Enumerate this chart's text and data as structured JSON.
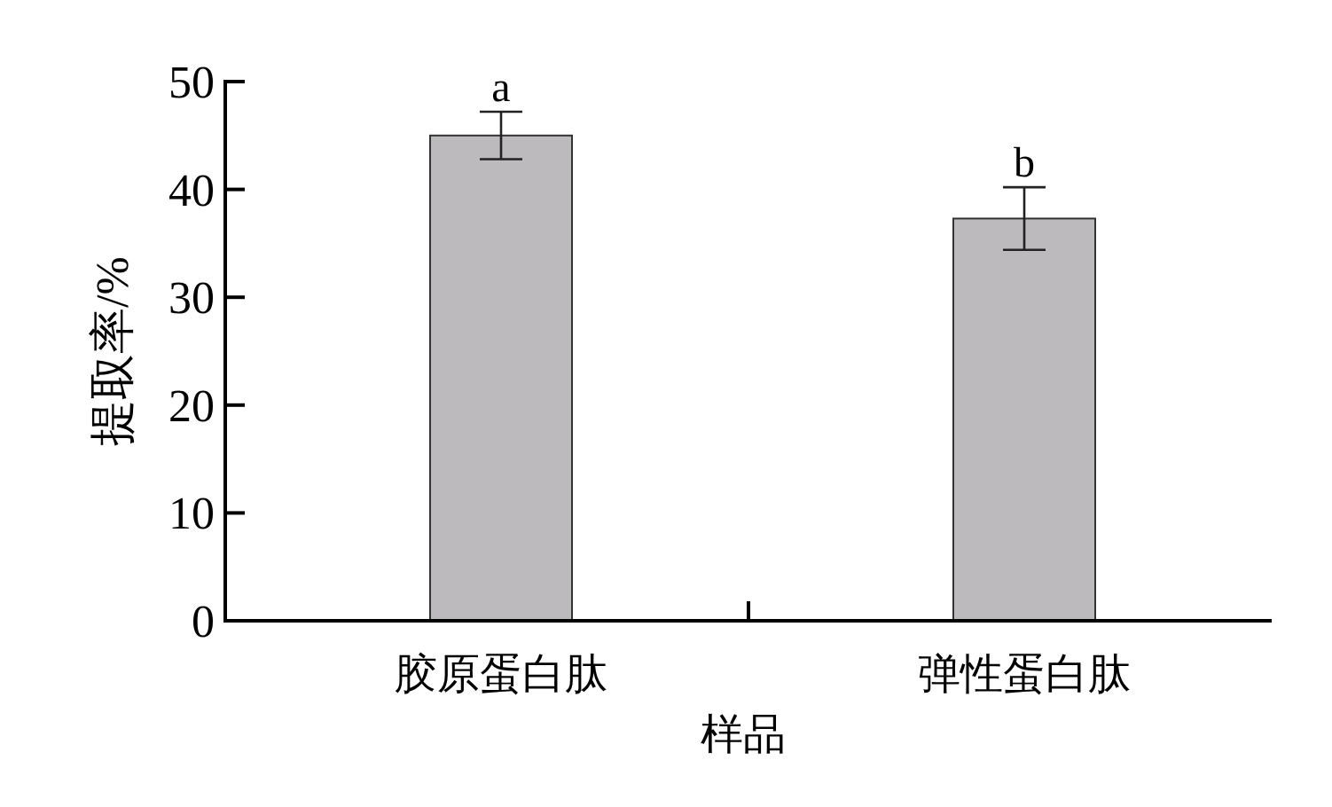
{
  "chart_data": {
    "type": "bar",
    "xlabel": "样品",
    "ylabel": "提取率/%",
    "categories": [
      "胶原蛋白肽",
      "弹性蛋白肽"
    ],
    "values": [
      45.0,
      37.3
    ],
    "errors": [
      2.2,
      2.9
    ],
    "color": "#bcbabc",
    "ylim": [
      0,
      50
    ],
    "yticks": [
      0,
      10,
      20,
      30,
      40,
      50
    ],
    "annotations": [
      {
        "text": "a",
        "x": "胶原蛋白肽",
        "y": 47.2
      },
      {
        "text": "b",
        "x": "弹性蛋白肽",
        "y": 40.2
      }
    ]
  }
}
